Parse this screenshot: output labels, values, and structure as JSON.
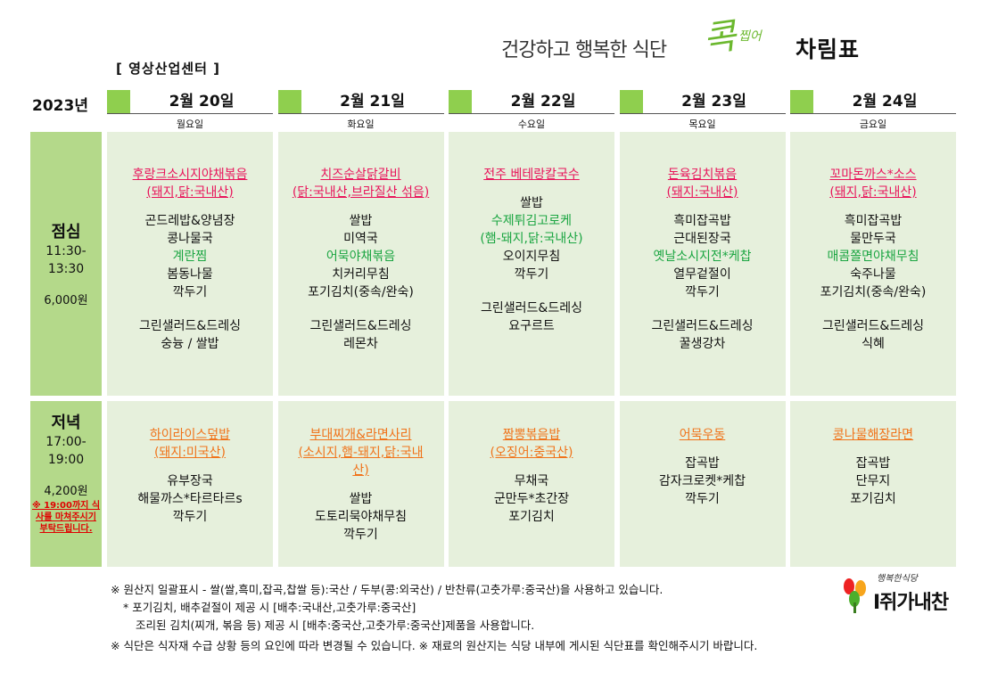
{
  "header": {
    "slogan": "건강하고 행복한 식단",
    "logo_text": "콕",
    "logo_small": "찝어",
    "title": "차림표",
    "center": "[ 영상산업센터 ]",
    "year": "2023년"
  },
  "days": [
    {
      "date": "2월 20일",
      "weekday": "월요일"
    },
    {
      "date": "2월 21일",
      "weekday": "화요일"
    },
    {
      "date": "2월 22일",
      "weekday": "수요일"
    },
    {
      "date": "2월 23일",
      "weekday": "목요일"
    },
    {
      "date": "2월 24일",
      "weekday": "금요일"
    }
  ],
  "lunch_label": {
    "meal": "점심",
    "time1": "11:30-",
    "time2": "13:30",
    "price": "6,000원"
  },
  "dinner_label": {
    "meal": "저녁",
    "time1": "17:00-",
    "time2": "19:00",
    "price": "4,200원",
    "note": "※ 19:00까지 식사를 마쳐주시기 부탁드립니다."
  },
  "lunch": [
    {
      "title": [
        "후랑크소시지야채볶음",
        "(돼지,닭:국내산)"
      ],
      "items": [
        "곤드레밥&양념장",
        "콩나물국",
        "계란찜",
        "봄동나물",
        "깍두기",
        "",
        "그린샐러드&드레싱",
        "숭늉 / 쌀밥"
      ],
      "green": [
        "계란찜"
      ]
    },
    {
      "title": [
        "치즈순살닭갈비",
        "(닭:국내산,브라질산 섞음)"
      ],
      "items": [
        "쌀밥",
        "미역국",
        "어묵야채볶음",
        "치커리무침",
        "포기김치(중속/완숙)",
        "",
        "그린샐러드&드레싱",
        "레몬차"
      ],
      "green": [
        "어묵야채볶음"
      ]
    },
    {
      "title": [
        "전주 베테랑칼국수"
      ],
      "items": [
        "쌀밥",
        "수제튀김고로케",
        "(햄-돼지,닭:국내산)",
        "오이지무침",
        "깍두기",
        "",
        "그린샐러드&드레싱",
        "요구르트"
      ],
      "green": [
        "수제튀김고로케",
        "(햄-돼지,닭:국내산)"
      ]
    },
    {
      "title": [
        "돈육김치볶음",
        "(돼지:국내산)"
      ],
      "items": [
        "흑미잡곡밥",
        "근대된장국",
        "옛날소시지전*케찹",
        "열무겉절이",
        "깍두기",
        "",
        "그린샐러드&드레싱",
        "꿀생강차"
      ],
      "green": [
        "옛날소시지전*케찹"
      ]
    },
    {
      "title": [
        "꼬마돈까스*소스",
        "(돼지,닭:국내산)"
      ],
      "items": [
        "흑미잡곡밥",
        "물만두국",
        "매콤쫄면야채무침",
        "숙주나물",
        "포기김치(중속/완숙)",
        "",
        "그린샐러드&드레싱",
        "식혜"
      ],
      "green": [
        "매콤쫄면야채무침"
      ]
    }
  ],
  "dinner": [
    {
      "title": [
        "하이라이스덮밥",
        "(돼지:미국산)"
      ],
      "items": [
        "유부장국",
        "해물까스*타르타르s",
        "깍두기"
      ]
    },
    {
      "title": [
        "부대찌개&라면사리",
        "(소시지,햄-돼지,닭:국내",
        "산)"
      ],
      "items": [
        "쌀밥",
        "도토리묵야채무침",
        "깍두기"
      ]
    },
    {
      "title": [
        "짬뽕볶음밥",
        "(오징어:중국산)"
      ],
      "items": [
        "무채국",
        "군만두*초간장",
        "포기김치"
      ]
    },
    {
      "title": [
        "어묵우동"
      ],
      "items": [
        "잡곡밥",
        "감자크로켓*케찹",
        "깍두기"
      ]
    },
    {
      "title": [
        "콩나물해장라면"
      ],
      "items": [
        "잡곡밥",
        "단무지",
        "포기김치"
      ]
    }
  ],
  "footer": [
    "※ 원산지 일괄표시 - 쌀(쌀,흑미,잡곡,찹쌀 등):국산 / 두부(콩:외국산) / 반찬류(고춧가루:중국산)을 사용하고 있습니다.",
    "* 포기김치, 배추겉절이 제공 시 [배추:국내산,고춧가루:중국산]",
    "조리된 김치(찌개, 볶음 등) 제공 시  [배추:중국산,고춧가루:중국산]제품을 사용합니다.",
    "※ 식단은 식자재 수급 상황 등의 요인에 따라 변경될 수 있습니다. ※ 재료의 원산지는 식당 내부에 게시된 식단표를 확인해주시기 바랍니다."
  ],
  "brand": {
    "tag": "행복한식당",
    "name": "I쥐가내찬"
  }
}
